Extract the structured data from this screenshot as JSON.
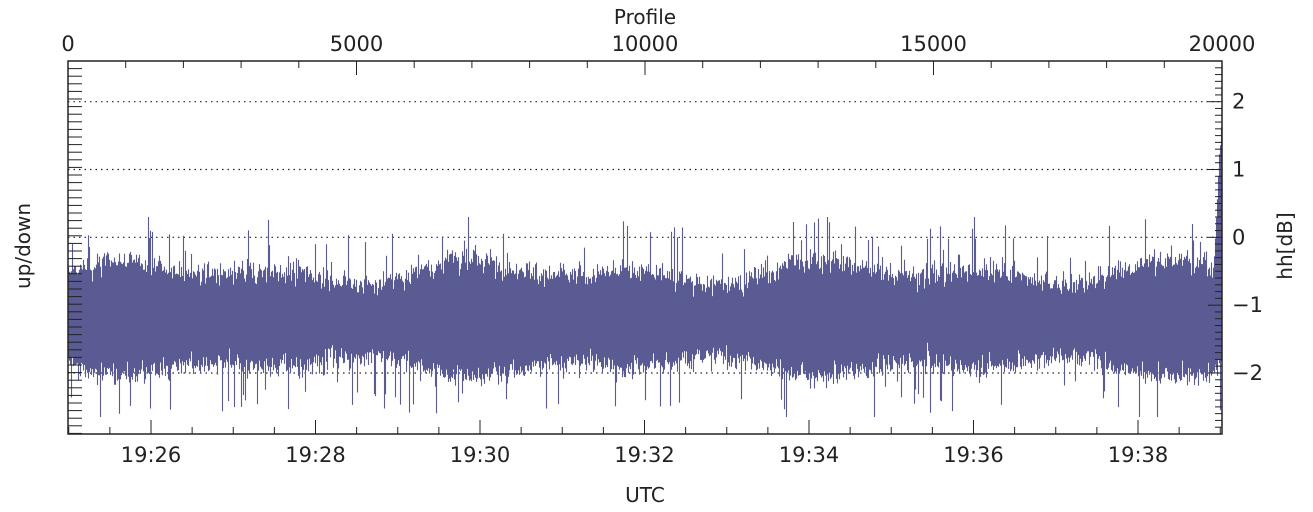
{
  "chart_data": {
    "type": "line",
    "x_top": {
      "label": "Profile",
      "range": [
        0,
        20000
      ],
      "ticks": [
        0,
        5000,
        10000,
        15000,
        20000
      ],
      "tick_labels": [
        "0",
        "5000",
        "10000",
        "15000",
        "20000"
      ]
    },
    "x_bottom": {
      "label": "UTC",
      "ticks": [
        "19:26",
        "19:28",
        "19:30",
        "19:32",
        "19:34",
        "19:36",
        "19:38"
      ]
    },
    "y_left": {
      "label": "up/down"
    },
    "y_right": {
      "label": "hh[dB]",
      "range": [
        -2.9,
        2.6
      ],
      "ticks": [
        2,
        1,
        0,
        -1,
        -2
      ],
      "tick_labels": [
        "2",
        "1",
        "0",
        "−1",
        "−2"
      ]
    },
    "grid": "horizontal dotted at each right-axis tick",
    "series": [
      {
        "color": "#5b5b93",
        "mean": -1.3,
        "typical_band": [
          -1.95,
          -0.45
        ],
        "extremes": [
          -2.65,
          0.3
        ],
        "profile_count": 20000
      }
    ]
  }
}
